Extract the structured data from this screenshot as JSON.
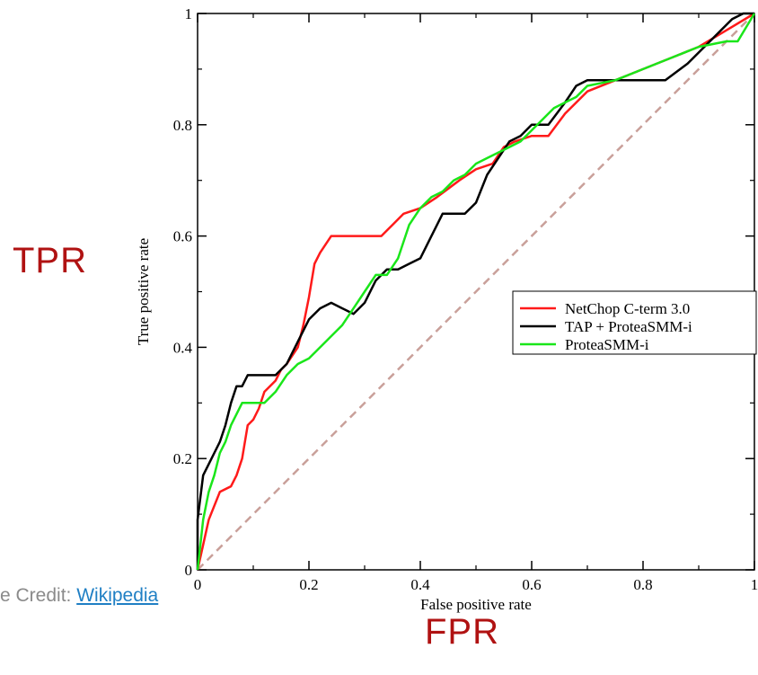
{
  "labels": {
    "tpr": "TPR",
    "fpr": "FPR",
    "credit_prefix": "e Credit: ",
    "credit_link": "Wikipedia"
  },
  "chart_data": {
    "type": "line",
    "xlabel": "False positive rate",
    "ylabel": "True positive rate",
    "xlim": [
      0,
      1
    ],
    "ylim": [
      0,
      1
    ],
    "x_ticks": [
      "0",
      "0.2",
      "0.4",
      "0.6",
      "0.8",
      "1"
    ],
    "y_ticks": [
      "0",
      "0.2",
      "0.4",
      "0.6",
      "0.8",
      "1"
    ],
    "grid": false,
    "legend_position": "right-middle",
    "diagonal_color": "#c9a09a",
    "series": [
      {
        "name": "NetChop C-term 3.0",
        "color": "#ff1a1a",
        "points": [
          [
            0,
            0
          ],
          [
            0.02,
            0.09
          ],
          [
            0.04,
            0.14
          ],
          [
            0.06,
            0.15
          ],
          [
            0.07,
            0.17
          ],
          [
            0.08,
            0.2
          ],
          [
            0.09,
            0.26
          ],
          [
            0.1,
            0.27
          ],
          [
            0.11,
            0.29
          ],
          [
            0.12,
            0.32
          ],
          [
            0.14,
            0.34
          ],
          [
            0.15,
            0.36
          ],
          [
            0.16,
            0.37
          ],
          [
            0.18,
            0.4
          ],
          [
            0.19,
            0.44
          ],
          [
            0.2,
            0.49
          ],
          [
            0.21,
            0.55
          ],
          [
            0.22,
            0.57
          ],
          [
            0.24,
            0.6
          ],
          [
            0.3,
            0.6
          ],
          [
            0.33,
            0.6
          ],
          [
            0.35,
            0.62
          ],
          [
            0.37,
            0.64
          ],
          [
            0.4,
            0.65
          ],
          [
            0.43,
            0.67
          ],
          [
            0.47,
            0.7
          ],
          [
            0.5,
            0.72
          ],
          [
            0.53,
            0.73
          ],
          [
            0.55,
            0.76
          ],
          [
            0.57,
            0.77
          ],
          [
            0.6,
            0.78
          ],
          [
            0.63,
            0.78
          ],
          [
            0.66,
            0.82
          ],
          [
            0.7,
            0.86
          ],
          [
            0.75,
            0.88
          ],
          [
            0.8,
            0.9
          ],
          [
            0.85,
            0.92
          ],
          [
            0.9,
            0.94
          ],
          [
            0.95,
            0.97
          ],
          [
            1,
            1
          ]
        ]
      },
      {
        "name": "TAP + ProteaSMM-i",
        "color": "#000000",
        "points": [
          [
            0,
            0
          ],
          [
            0,
            0.09
          ],
          [
            0.01,
            0.17
          ],
          [
            0.02,
            0.19
          ],
          [
            0.03,
            0.21
          ],
          [
            0.04,
            0.23
          ],
          [
            0.05,
            0.26
          ],
          [
            0.06,
            0.3
          ],
          [
            0.07,
            0.33
          ],
          [
            0.08,
            0.33
          ],
          [
            0.09,
            0.35
          ],
          [
            0.12,
            0.35
          ],
          [
            0.14,
            0.35
          ],
          [
            0.16,
            0.37
          ],
          [
            0.18,
            0.41
          ],
          [
            0.2,
            0.45
          ],
          [
            0.22,
            0.47
          ],
          [
            0.24,
            0.48
          ],
          [
            0.26,
            0.47
          ],
          [
            0.28,
            0.46
          ],
          [
            0.3,
            0.48
          ],
          [
            0.32,
            0.52
          ],
          [
            0.34,
            0.54
          ],
          [
            0.36,
            0.54
          ],
          [
            0.38,
            0.55
          ],
          [
            0.4,
            0.56
          ],
          [
            0.42,
            0.6
          ],
          [
            0.44,
            0.64
          ],
          [
            0.48,
            0.64
          ],
          [
            0.5,
            0.66
          ],
          [
            0.52,
            0.71
          ],
          [
            0.54,
            0.74
          ],
          [
            0.56,
            0.77
          ],
          [
            0.58,
            0.78
          ],
          [
            0.6,
            0.8
          ],
          [
            0.63,
            0.8
          ],
          [
            0.66,
            0.84
          ],
          [
            0.68,
            0.87
          ],
          [
            0.7,
            0.88
          ],
          [
            0.75,
            0.88
          ],
          [
            0.8,
            0.88
          ],
          [
            0.84,
            0.88
          ],
          [
            0.88,
            0.91
          ],
          [
            0.92,
            0.95
          ],
          [
            0.96,
            0.99
          ],
          [
            0.98,
            1
          ],
          [
            1,
            1
          ]
        ]
      },
      {
        "name": "ProteaSMM-i",
        "color": "#1ae61a",
        "points": [
          [
            0,
            0
          ],
          [
            0.01,
            0.09
          ],
          [
            0.02,
            0.14
          ],
          [
            0.03,
            0.17
          ],
          [
            0.04,
            0.21
          ],
          [
            0.05,
            0.23
          ],
          [
            0.06,
            0.26
          ],
          [
            0.07,
            0.28
          ],
          [
            0.08,
            0.3
          ],
          [
            0.1,
            0.3
          ],
          [
            0.12,
            0.3
          ],
          [
            0.14,
            0.32
          ],
          [
            0.16,
            0.35
          ],
          [
            0.18,
            0.37
          ],
          [
            0.2,
            0.38
          ],
          [
            0.22,
            0.4
          ],
          [
            0.24,
            0.42
          ],
          [
            0.26,
            0.44
          ],
          [
            0.28,
            0.47
          ],
          [
            0.3,
            0.5
          ],
          [
            0.32,
            0.53
          ],
          [
            0.34,
            0.53
          ],
          [
            0.36,
            0.56
          ],
          [
            0.38,
            0.62
          ],
          [
            0.4,
            0.65
          ],
          [
            0.42,
            0.67
          ],
          [
            0.44,
            0.68
          ],
          [
            0.46,
            0.7
          ],
          [
            0.48,
            0.71
          ],
          [
            0.5,
            0.73
          ],
          [
            0.52,
            0.74
          ],
          [
            0.54,
            0.75
          ],
          [
            0.56,
            0.76
          ],
          [
            0.58,
            0.77
          ],
          [
            0.6,
            0.79
          ],
          [
            0.62,
            0.81
          ],
          [
            0.64,
            0.83
          ],
          [
            0.66,
            0.84
          ],
          [
            0.68,
            0.85
          ],
          [
            0.7,
            0.87
          ],
          [
            0.75,
            0.88
          ],
          [
            0.8,
            0.9
          ],
          [
            0.85,
            0.92
          ],
          [
            0.9,
            0.94
          ],
          [
            0.95,
            0.95
          ],
          [
            0.97,
            0.95
          ],
          [
            1,
            1
          ]
        ]
      }
    ]
  }
}
